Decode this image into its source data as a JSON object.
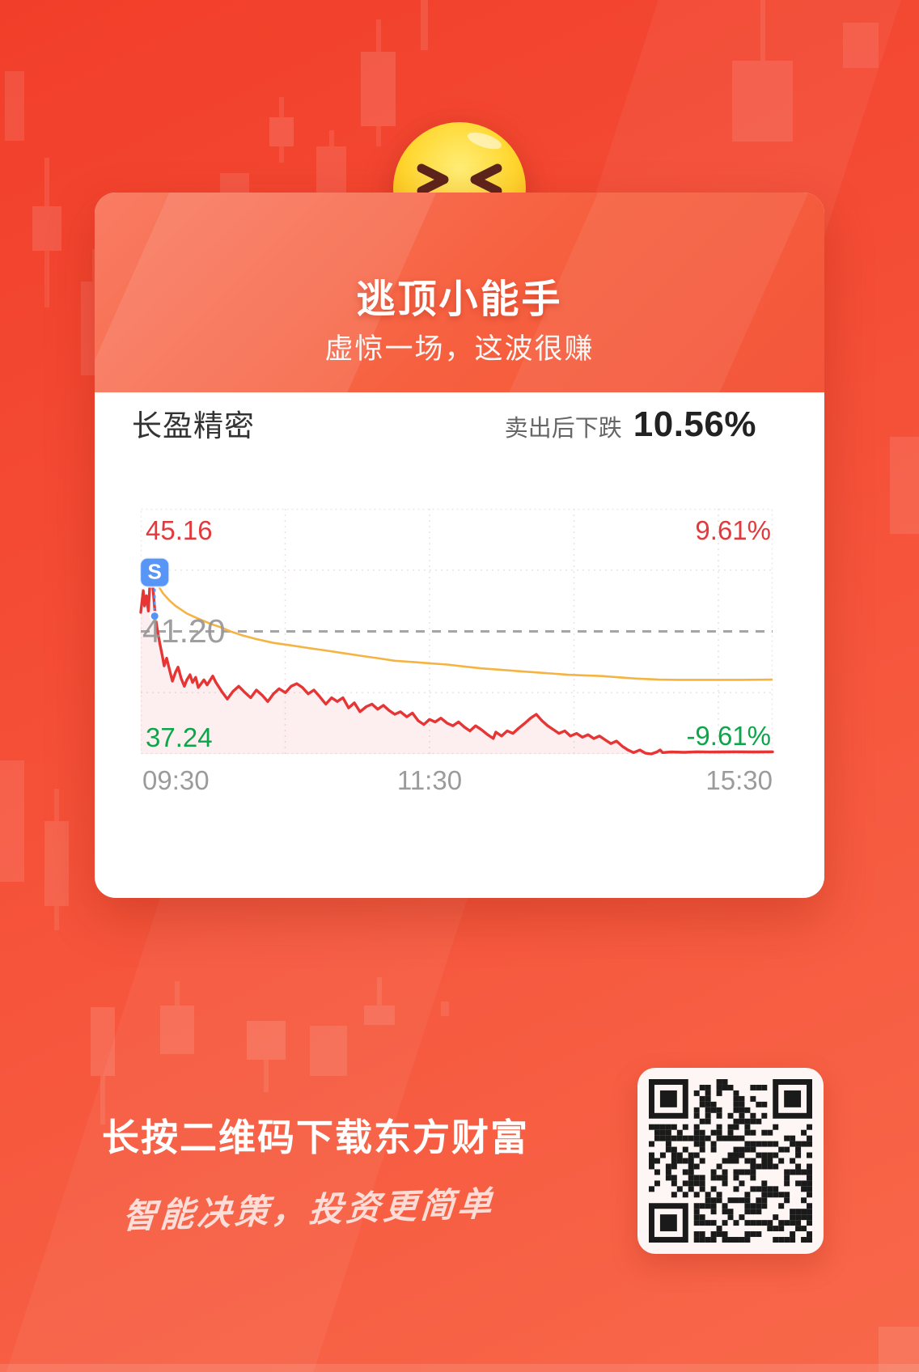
{
  "header": {
    "icon": "laughing-emoji-icon",
    "title": "逃顶小能手",
    "subtitle": "虚惊一场，这波很赚"
  },
  "stock": {
    "name": "长盈精密",
    "sell_caption": "卖出后下跌",
    "sell_drop_pct": "10.56%"
  },
  "chart_data": {
    "type": "line",
    "title": "长盈精密 分时走势图 (intraday time-share chart)",
    "x_axis": {
      "labels": [
        "09:30",
        "11:30",
        "15:30"
      ],
      "grid": "dotted quarters of main session + after-hours segment"
    },
    "y_axis": {
      "high_price": "45.16",
      "high_pct": "9.61%",
      "prev_close": "41.20",
      "low_price": "37.24",
      "low_pct": "-9.61%",
      "range_pct": 9.61
    },
    "legend_position": "none",
    "sell_marker": {
      "label": "S",
      "x": 0.022,
      "pct": 1.2
    },
    "series": [
      {
        "name": "price",
        "color": "#e63535",
        "points": [
          [
            0.0,
            1.5
          ],
          [
            0.004,
            3.2
          ],
          [
            0.006,
            2.0
          ],
          [
            0.009,
            2.8
          ],
          [
            0.012,
            1.6
          ],
          [
            0.016,
            5.1
          ],
          [
            0.02,
            3.0
          ],
          [
            0.023,
            1.2
          ],
          [
            0.026,
            0.2
          ],
          [
            0.03,
            -0.9
          ],
          [
            0.034,
            -1.9
          ],
          [
            0.037,
            -2.7
          ],
          [
            0.041,
            -2.1
          ],
          [
            0.046,
            -3.1
          ],
          [
            0.05,
            -3.9
          ],
          [
            0.055,
            -3.2
          ],
          [
            0.059,
            -2.8
          ],
          [
            0.064,
            -3.7
          ],
          [
            0.069,
            -4.3
          ],
          [
            0.073,
            -3.8
          ],
          [
            0.078,
            -3.4
          ],
          [
            0.082,
            -4.0
          ],
          [
            0.087,
            -3.6
          ],
          [
            0.091,
            -4.4
          ],
          [
            0.1,
            -3.8
          ],
          [
            0.105,
            -4.2
          ],
          [
            0.114,
            -3.5
          ],
          [
            0.119,
            -4.0
          ],
          [
            0.128,
            -4.7
          ],
          [
            0.137,
            -5.3
          ],
          [
            0.146,
            -4.7
          ],
          [
            0.155,
            -4.3
          ],
          [
            0.165,
            -4.8
          ],
          [
            0.174,
            -5.2
          ],
          [
            0.183,
            -4.6
          ],
          [
            0.192,
            -5.0
          ],
          [
            0.201,
            -5.5
          ],
          [
            0.21,
            -4.9
          ],
          [
            0.219,
            -4.5
          ],
          [
            0.229,
            -4.8
          ],
          [
            0.238,
            -4.3
          ],
          [
            0.247,
            -4.1
          ],
          [
            0.256,
            -4.4
          ],
          [
            0.265,
            -4.9
          ],
          [
            0.274,
            -4.6
          ],
          [
            0.283,
            -5.1
          ],
          [
            0.293,
            -5.7
          ],
          [
            0.302,
            -5.2
          ],
          [
            0.311,
            -5.5
          ],
          [
            0.32,
            -5.2
          ],
          [
            0.329,
            -6.0
          ],
          [
            0.338,
            -5.6
          ],
          [
            0.347,
            -6.3
          ],
          [
            0.357,
            -5.9
          ],
          [
            0.366,
            -5.7
          ],
          [
            0.375,
            -6.1
          ],
          [
            0.384,
            -5.8
          ],
          [
            0.393,
            -6.2
          ],
          [
            0.402,
            -6.5
          ],
          [
            0.411,
            -6.3
          ],
          [
            0.421,
            -6.7
          ],
          [
            0.43,
            -6.4
          ],
          [
            0.439,
            -7.0
          ],
          [
            0.448,
            -7.3
          ],
          [
            0.457,
            -6.9
          ],
          [
            0.466,
            -7.1
          ],
          [
            0.475,
            -6.8
          ],
          [
            0.485,
            -7.2
          ],
          [
            0.494,
            -7.4
          ],
          [
            0.503,
            -7.1
          ],
          [
            0.512,
            -7.5
          ],
          [
            0.521,
            -7.8
          ],
          [
            0.53,
            -7.4
          ],
          [
            0.539,
            -7.7
          ],
          [
            0.549,
            -8.1
          ],
          [
            0.558,
            -8.4
          ],
          [
            0.562,
            -7.9
          ],
          [
            0.571,
            -8.2
          ],
          [
            0.58,
            -7.8
          ],
          [
            0.589,
            -8.0
          ],
          [
            0.598,
            -7.6
          ],
          [
            0.608,
            -7.2
          ],
          [
            0.617,
            -6.8
          ],
          [
            0.626,
            -6.5
          ],
          [
            0.635,
            -7.0
          ],
          [
            0.644,
            -7.4
          ],
          [
            0.653,
            -7.7
          ],
          [
            0.662,
            -8.0
          ],
          [
            0.671,
            -7.8
          ],
          [
            0.68,
            -8.2
          ],
          [
            0.69,
            -8.0
          ],
          [
            0.699,
            -8.3
          ],
          [
            0.708,
            -8.1
          ],
          [
            0.717,
            -8.4
          ],
          [
            0.726,
            -8.2
          ],
          [
            0.735,
            -8.5
          ],
          [
            0.744,
            -8.8
          ],
          [
            0.753,
            -8.6
          ],
          [
            0.762,
            -9.0
          ],
          [
            0.771,
            -9.3
          ],
          [
            0.78,
            -9.5
          ],
          [
            0.79,
            -9.3
          ],
          [
            0.799,
            -9.55
          ],
          [
            0.808,
            -9.61
          ],
          [
            0.817,
            -9.45
          ],
          [
            0.822,
            -9.3
          ],
          [
            0.826,
            -9.5
          ],
          [
            0.84,
            -9.45
          ],
          [
            0.86,
            -9.48
          ],
          [
            0.88,
            -9.44
          ],
          [
            0.9,
            -9.46
          ],
          [
            0.914,
            -9.45
          ],
          [
            0.94,
            -9.44
          ],
          [
            0.97,
            -9.45
          ],
          [
            1.0,
            -9.44
          ]
        ]
      },
      {
        "name": "average",
        "color": "#f5b342",
        "points": [
          [
            0.016,
            4.7
          ],
          [
            0.025,
            3.8
          ],
          [
            0.035,
            3.0
          ],
          [
            0.046,
            2.4
          ],
          [
            0.055,
            2.0
          ],
          [
            0.064,
            1.7
          ],
          [
            0.073,
            1.4
          ],
          [
            0.082,
            1.2
          ],
          [
            0.091,
            1.0
          ],
          [
            0.11,
            0.6
          ],
          [
            0.128,
            0.3
          ],
          [
            0.142,
            0.0
          ],
          [
            0.16,
            -0.3
          ],
          [
            0.183,
            -0.6
          ],
          [
            0.21,
            -0.9
          ],
          [
            0.238,
            -1.1
          ],
          [
            0.265,
            -1.3
          ],
          [
            0.293,
            -1.5
          ],
          [
            0.32,
            -1.7
          ],
          [
            0.347,
            -1.9
          ],
          [
            0.375,
            -2.1
          ],
          [
            0.402,
            -2.3
          ],
          [
            0.43,
            -2.4
          ],
          [
            0.457,
            -2.5
          ],
          [
            0.485,
            -2.6
          ],
          [
            0.512,
            -2.75
          ],
          [
            0.539,
            -2.9
          ],
          [
            0.567,
            -3.0
          ],
          [
            0.594,
            -3.1
          ],
          [
            0.621,
            -3.2
          ],
          [
            0.649,
            -3.3
          ],
          [
            0.676,
            -3.4
          ],
          [
            0.703,
            -3.45
          ],
          [
            0.73,
            -3.5
          ],
          [
            0.757,
            -3.6
          ],
          [
            0.784,
            -3.7
          ],
          [
            0.82,
            -3.78
          ],
          [
            0.85,
            -3.8
          ],
          [
            0.9,
            -3.8
          ],
          [
            0.95,
            -3.8
          ],
          [
            1.0,
            -3.78
          ]
        ]
      }
    ]
  },
  "footer": {
    "download_text": "长按二维码下载东方财富",
    "slogan": "智能决策，投资更简单",
    "qr": "download-qr-code"
  },
  "colors": {
    "background_red": "#f54f37",
    "accent_red": "#e4393c",
    "down_green": "#0ca64a",
    "price_line": "#e63535",
    "avg_line": "#f5b342",
    "sell_marker_blue": "#5693f5",
    "prev_close_gray": "#9f9f9f"
  }
}
